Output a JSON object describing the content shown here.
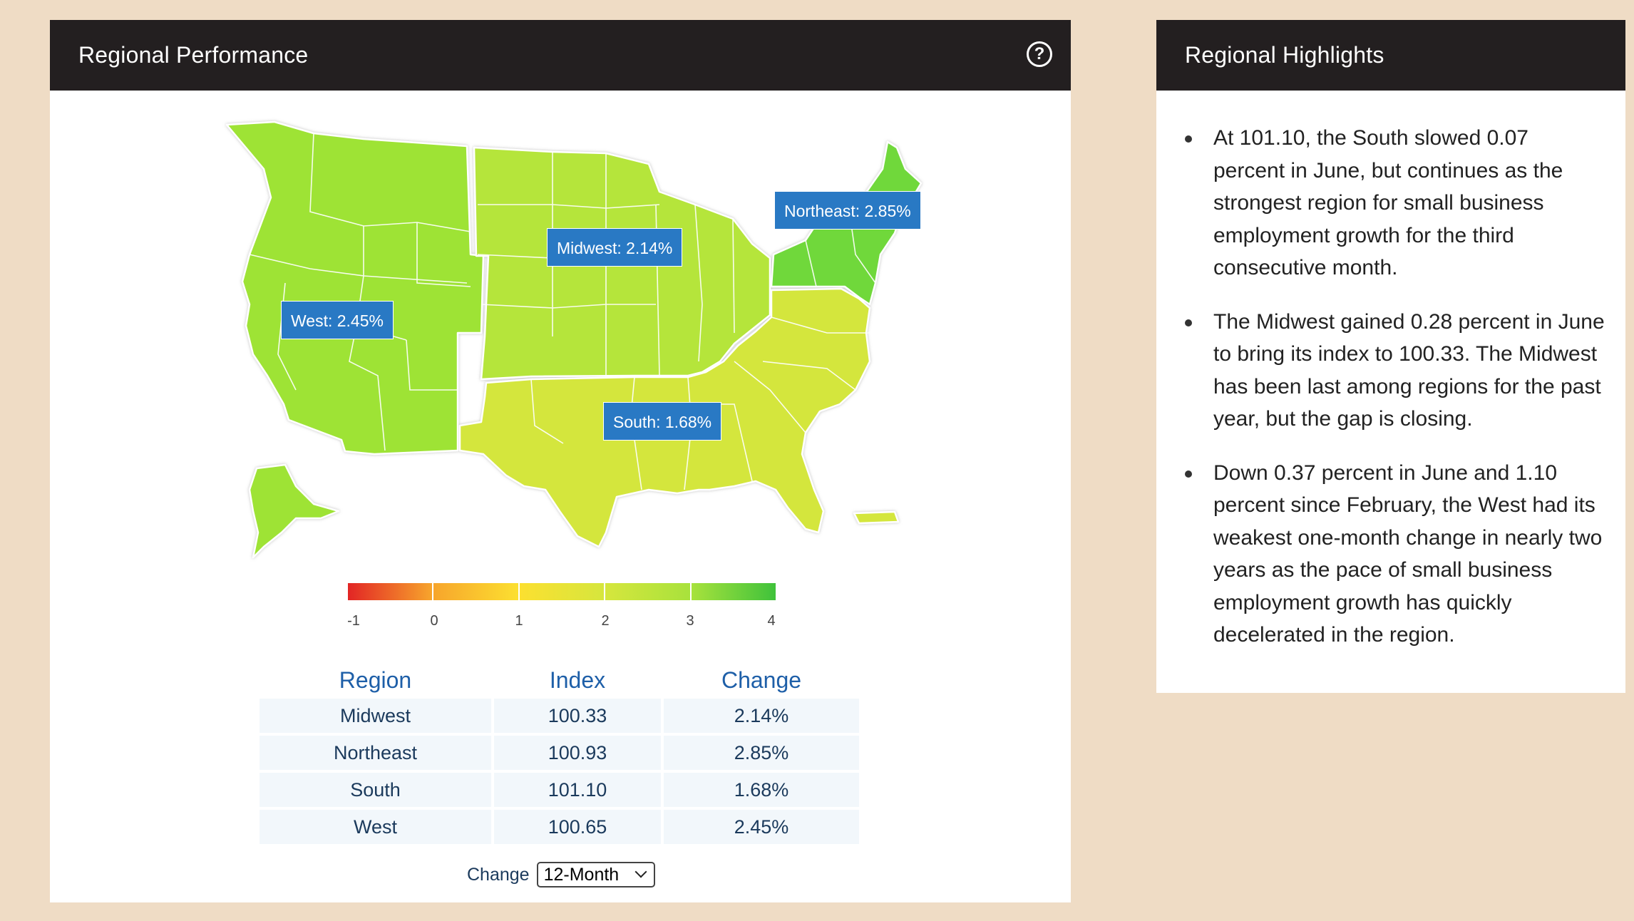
{
  "performance_panel": {
    "title": "Regional Performance",
    "help_icon": "question-circle-icon",
    "map": {
      "type": "choropleth",
      "regions": [
        {
          "name": "West",
          "label": "West: 2.45%",
          "value": 2.45,
          "color": "#9ee335"
        },
        {
          "name": "Midwest",
          "label": "Midwest: 2.14%",
          "value": 2.14,
          "color": "#b5e53a"
        },
        {
          "name": "Northeast",
          "label": "Northeast: 2.85%",
          "value": 2.85,
          "color": "#6fd83a"
        },
        {
          "name": "South",
          "label": "South: 1.68%",
          "value": 1.68,
          "color": "#d4e63c"
        }
      ],
      "label_color": "#2979c4"
    },
    "legend": {
      "min": -1,
      "max": 4,
      "ticks": [
        "-1",
        "0",
        "1",
        "2",
        "3",
        "4"
      ],
      "segment_colors": [
        [
          "#e22525",
          "#f7a52c"
        ],
        [
          "#f7a52c",
          "#fce030"
        ],
        [
          "#fce030",
          "#d6e63d"
        ],
        [
          "#d6e63d",
          "#a8e23c"
        ],
        [
          "#a8e23c",
          "#3fc23b"
        ]
      ]
    },
    "table": {
      "headers": [
        "Region",
        "Index",
        "Change"
      ],
      "rows": [
        [
          "Midwest",
          "100.33",
          "2.14%"
        ],
        [
          "Northeast",
          "100.93",
          "2.85%"
        ],
        [
          "South",
          "101.10",
          "1.68%"
        ],
        [
          "West",
          "100.65",
          "2.45%"
        ]
      ]
    },
    "change_control": {
      "label": "Change",
      "selected": "12-Month"
    }
  },
  "highlights_panel": {
    "title": "Regional Highlights",
    "items": [
      "At 101.10, the South slowed 0.07 percent in June, but continues as the strongest region for small business employment growth for the third consecutive month.",
      "The Midwest gained 0.28 percent in June to bring its index to 100.33. The Midwest has been last among regions for the past year, but the gap is closing.",
      "Down 0.37 percent in June and 1.10 percent since February, the West had its weakest one-month change in nearly two years as the pace of small business employment growth has quickly decelerated in the region."
    ]
  }
}
